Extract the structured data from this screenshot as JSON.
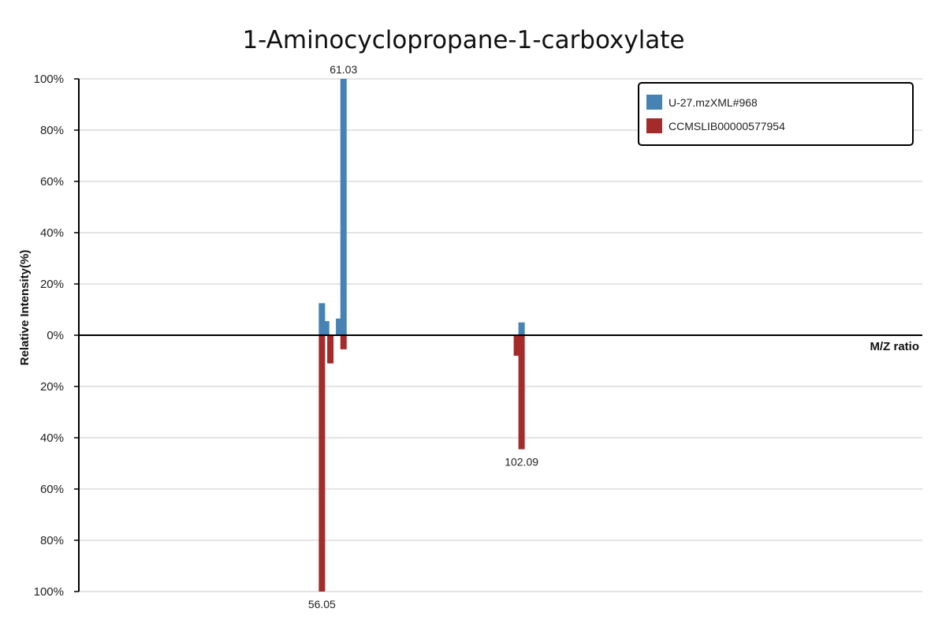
{
  "chart_data": {
    "type": "bar",
    "title": "1-Aminocyclopropane-1-carboxylate",
    "xlabel": "M/Z ratio",
    "ylabel": "Relative Intensity(%)",
    "ylim_top": [
      0,
      100
    ],
    "ylim_bottom": [
      0,
      100
    ],
    "y_ticks_top": [
      "100%",
      "80%",
      "60%",
      "40%",
      "20%",
      "0%"
    ],
    "y_ticks_bottom": [
      "20%",
      "40%",
      "60%",
      "80%",
      "100%"
    ],
    "grid": true,
    "legend_position": "top-right",
    "series": [
      {
        "name": "U-27.mzXML#968",
        "color": "#4682b4",
        "direction": "up",
        "peaks": [
          {
            "mz": 56.05,
            "intensity": 12.5
          },
          {
            "mz": 57.03,
            "intensity": 5.5
          },
          {
            "mz": 60.0,
            "intensity": 6.5
          },
          {
            "mz": 61.03,
            "intensity": 100,
            "label": "61.03"
          },
          {
            "mz": 102.09,
            "intensity": 5.0
          }
        ]
      },
      {
        "name": "CCMSLIB00000577954",
        "color": "#a52a2a",
        "direction": "down",
        "peaks": [
          {
            "mz": 56.05,
            "intensity": 100,
            "label": "56.05"
          },
          {
            "mz": 58.0,
            "intensity": 11.0
          },
          {
            "mz": 61.03,
            "intensity": 5.5
          },
          {
            "mz": 101.0,
            "intensity": 8.0
          },
          {
            "mz": 102.09,
            "intensity": 44.5,
            "label": "102.09"
          }
        ]
      }
    ]
  }
}
